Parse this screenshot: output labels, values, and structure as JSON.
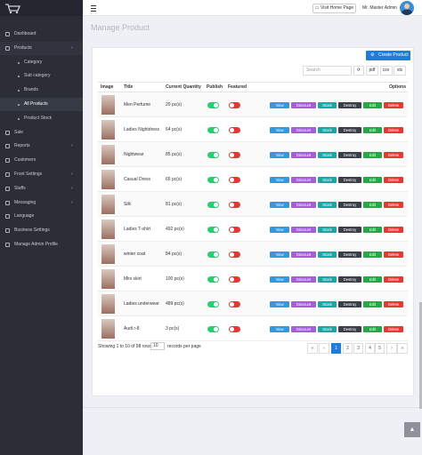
{
  "sidebar": {
    "items": [
      {
        "label": "Dashboard",
        "level": 0
      },
      {
        "label": "Products",
        "level": 0,
        "caret": true
      },
      {
        "label": "Category",
        "level": 1
      },
      {
        "label": "Sub category",
        "level": 1
      },
      {
        "label": "Brands",
        "level": 1
      },
      {
        "label": "All Products",
        "level": 1,
        "active": true
      },
      {
        "label": "Product Stock",
        "level": 1
      },
      {
        "label": "Sale",
        "level": 0
      },
      {
        "label": "Reports",
        "level": 0,
        "caret": true
      },
      {
        "label": "Customers",
        "level": 0
      },
      {
        "label": "Front Settings",
        "level": 0,
        "caret": true
      },
      {
        "label": "Staffs",
        "level": 0,
        "caret": true
      },
      {
        "label": "Messaging",
        "level": 0,
        "caret": true
      },
      {
        "label": "Language",
        "level": 0
      },
      {
        "label": "Business Settings",
        "level": 0
      },
      {
        "label": "Manage Admin Profile",
        "level": 0
      }
    ]
  },
  "header": {
    "visit_button": "Visit Home Page",
    "user": "Mr. Master Admin"
  },
  "page": {
    "title": "Manage Product"
  },
  "toolbar": {
    "create_button": "Create Product",
    "search_placeholder": "Search",
    "exports": [
      "pdf",
      "csv",
      "xls"
    ]
  },
  "table": {
    "headers": [
      "Image",
      "Title",
      "Current Quantity",
      "Publish",
      "Featured",
      "Options"
    ],
    "actions": [
      "View",
      "Discount",
      "Stock",
      "Destroy",
      "Edit",
      "Delete"
    ],
    "rows": [
      {
        "title": "Men Perfume",
        "quantity": "20 pc(s)",
        "publish": true,
        "featured": false
      },
      {
        "title": "Ladies Nightdress",
        "quantity": "64 pc(s)",
        "publish": true,
        "featured": false
      },
      {
        "title": "Nightwear",
        "quantity": "85 pc(s)",
        "publish": true,
        "featured": false
      },
      {
        "title": "Casual Dress",
        "quantity": "65 pc(s)",
        "publish": true,
        "featured": false
      },
      {
        "title": "Silk",
        "quantity": "81 pc(s)",
        "publish": true,
        "featured": false
      },
      {
        "title": "Ladies T-shirt",
        "quantity": "492 pc(s)",
        "publish": true,
        "featured": false
      },
      {
        "title": "winter coat",
        "quantity": "84 pc(s)",
        "publish": true,
        "featured": false
      },
      {
        "title": "Mini skirt",
        "quantity": "100 pc(s)",
        "publish": true,
        "featured": false
      },
      {
        "title": "Ladies underwear",
        "quantity": "489 pc(s)",
        "publish": true,
        "featured": false
      },
      {
        "title": "Audi r-8",
        "quantity": "3 pc(s)",
        "publish": true,
        "featured": false
      }
    ]
  },
  "footer": {
    "summary": "Showing 1 to 10 of 98 rows",
    "page_size": "10",
    "page_size_suffix": "records per page"
  },
  "pagination": {
    "pages": [
      "‹‹",
      "‹",
      "1",
      "2",
      "3",
      "4",
      "5",
      "›",
      "››"
    ],
    "active": "1"
  }
}
